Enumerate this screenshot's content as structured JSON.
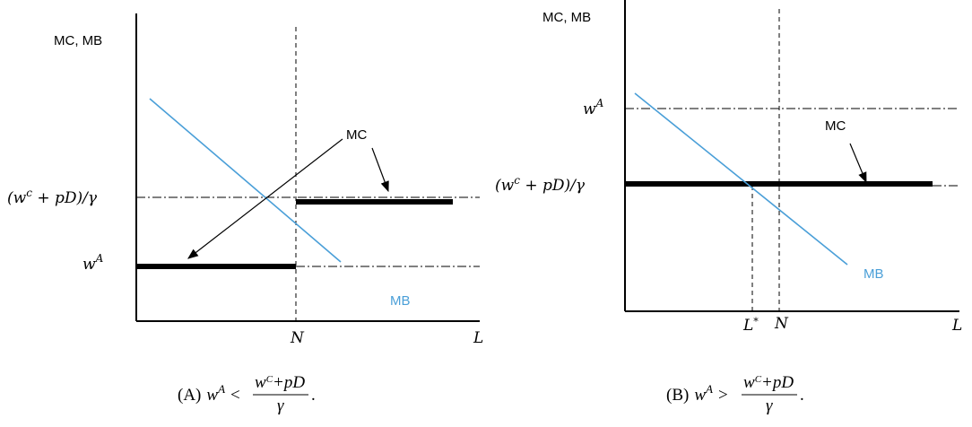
{
  "panel_a": {
    "y_axis_label": "MC, MB",
    "wc_label": [
      "(w",
      "c",
      " + pD)/γ"
    ],
    "wa_label": [
      "w",
      "A"
    ],
    "mc_label": "MC",
    "mb_label": "MB",
    "n_label": "N",
    "l_label": "L",
    "caption": {
      "tag": "(A)",
      "lhs": [
        "w",
        "A"
      ],
      "op": "<",
      "num": [
        "w",
        "C",
        "+pD"
      ],
      "den": "γ",
      "end": "."
    }
  },
  "panel_b": {
    "y_axis_label": "MC, MB",
    "wa_label": [
      "w",
      "A"
    ],
    "wc_label": [
      "(w",
      "c",
      " + pD)/γ"
    ],
    "mc_label": "MC",
    "mb_label": "MB",
    "lstar_label": [
      "L",
      "*"
    ],
    "n_label": "N",
    "l_label": "L",
    "caption": {
      "tag": "(B)",
      "lhs": [
        "w",
        "A"
      ],
      "op": ">",
      "num": [
        "w",
        "C",
        "+pD"
      ],
      "den": "γ",
      "end": "."
    }
  }
}
